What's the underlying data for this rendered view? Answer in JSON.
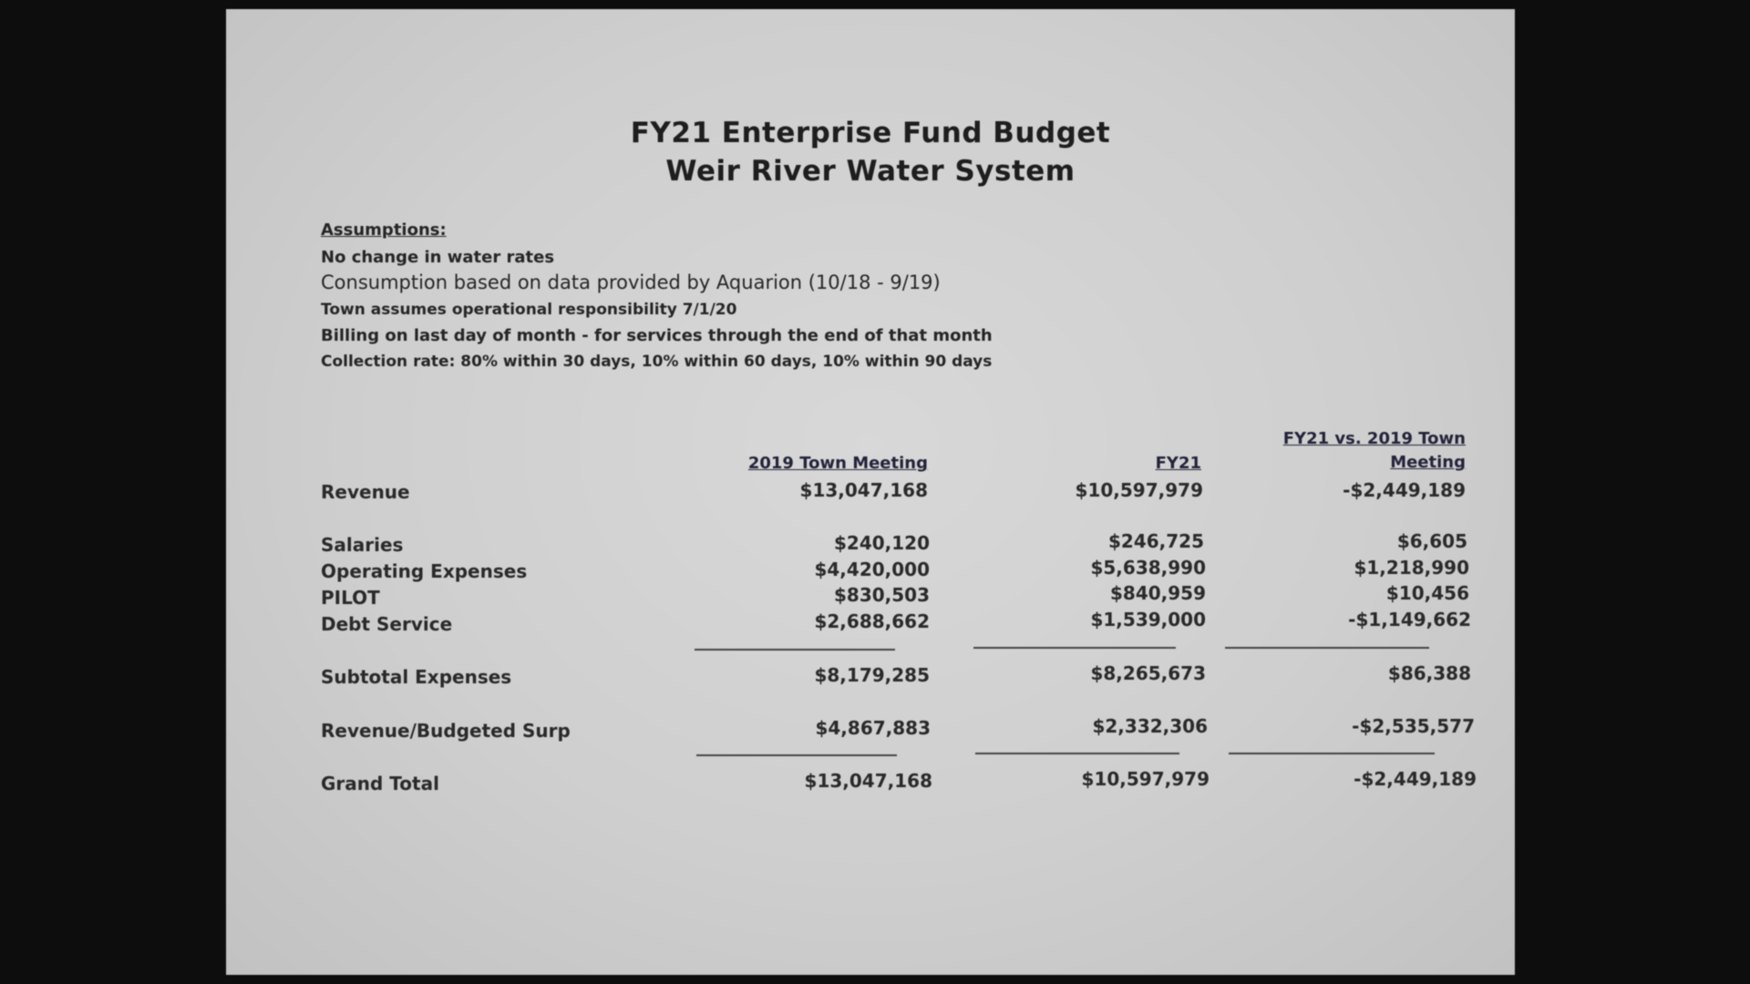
{
  "title_line1": "FY21 Enterprise Fund Budget",
  "title_line2": "Weir River Water System",
  "assumptions": {
    "heading": "Assumptions:",
    "items": [
      "No change in water rates",
      "Consumption based on data provided by Aquarion (10/18 - 9/19)",
      "Town assumes operational responsibility 7/1/20",
      "Billing on last day of month - for services through the end of that month",
      "Collection rate:  80% within 30 days, 10% within 60 days, 10% within 90 days"
    ]
  },
  "columns": {
    "col1": "2019 Town Meeting",
    "col2": "FY21",
    "col3_line1": "FY21 vs. 2019 Town",
    "col3_line2": "Meeting"
  },
  "rows": [
    {
      "label": "Revenue",
      "c1": "$13,047,168",
      "c2": "$10,597,979",
      "c3": "-$2,449,189"
    },
    {
      "label": "Salaries",
      "c1": "$240,120",
      "c2": "$246,725",
      "c3": "$6,605"
    },
    {
      "label": "Operating Expenses",
      "c1": "$4,420,000",
      "c2": "$5,638,990",
      "c3": "$1,218,990"
    },
    {
      "label": "PILOT",
      "c1": "$830,503",
      "c2": "$840,959",
      "c3": "$10,456"
    },
    {
      "label": "Debt Service",
      "c1": "$2,688,662",
      "c2": "$1,539,000",
      "c3": "-$1,149,662"
    },
    {
      "label": "Subtotal Expenses",
      "c1": "$8,179,285",
      "c2": "$8,265,673",
      "c3": "$86,388"
    },
    {
      "label": "Revenue/Budgeted Surp",
      "c1": "$4,867,883",
      "c2": "$2,332,306",
      "c3": "-$2,535,577"
    },
    {
      "label": "Grand Total",
      "c1": "$13,047,168",
      "c2": "$10,597,979",
      "c3": "-$2,449,189"
    }
  ]
}
